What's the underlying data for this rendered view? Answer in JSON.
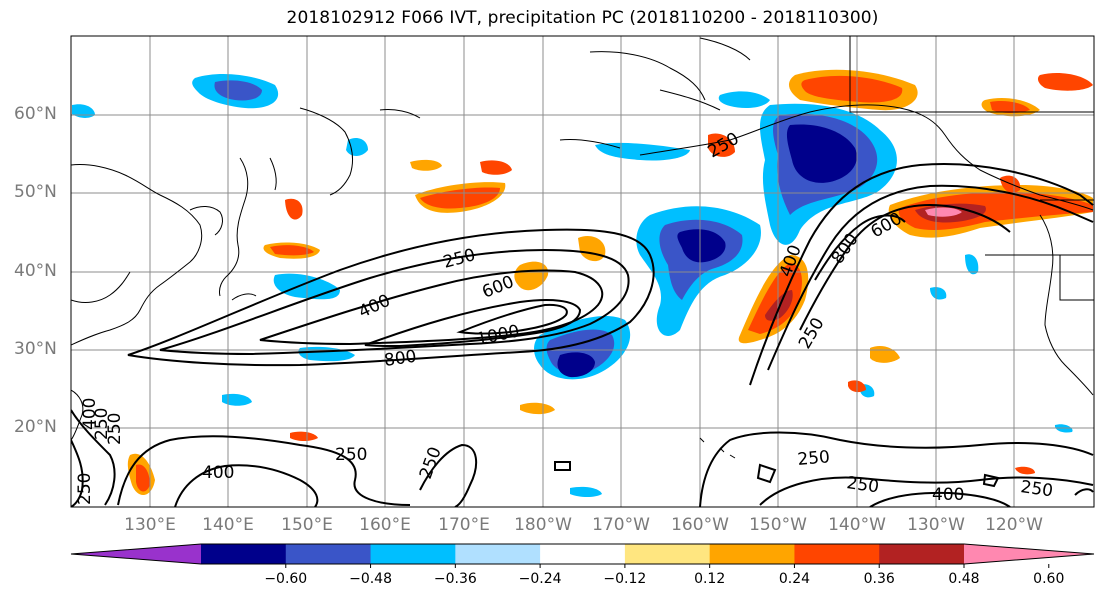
{
  "title": "2018102912 F066 IVT, precipitation PC (2018110200 - 2018110300)",
  "lat_labels": [
    "60°N",
    "50°N",
    "40°N",
    "30°N",
    "20°N"
  ],
  "lon_labels": [
    "130°E",
    "140°E",
    "150°E",
    "160°E",
    "170°E",
    "180°W",
    "170°W",
    "160°W",
    "150°W",
    "140°W",
    "130°W",
    "120°W"
  ],
  "ivt_contour_labels": [
    "250",
    "400",
    "600",
    "800",
    "1000",
    "400",
    "800",
    "600",
    "250",
    "250",
    "250",
    "400",
    "250",
    "250",
    "250",
    "400",
    "250",
    "400",
    "250",
    "250",
    "250"
  ],
  "colorbar": {
    "colors": [
      "#9932cc",
      "#00008b",
      "#3a55c8",
      "#00bfff",
      "#b0e0ff",
      "#ffffff",
      "#ffe680",
      "#ffa500",
      "#ff4500",
      "#b22222",
      "#ff88b0"
    ],
    "tick_labels": [
      "−0.60",
      "−0.48",
      "−0.36",
      "−0.24",
      "−0.12",
      "0.12",
      "0.24",
      "0.36",
      "0.48",
      "0.60"
    ]
  }
}
